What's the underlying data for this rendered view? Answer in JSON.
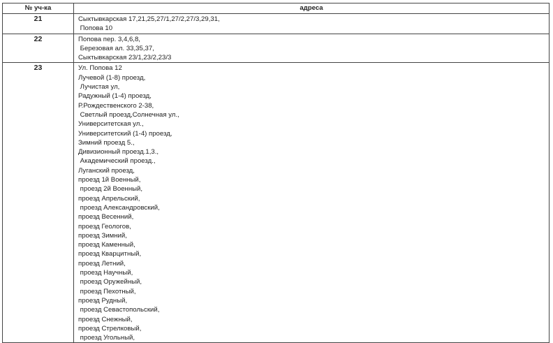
{
  "table": {
    "headers": [
      "№ уч-ка",
      "адреса"
    ],
    "rows": [
      {
        "number": "21",
        "addresses": [
          "Сыктывкарская 17,21,25,27/1,27/2,27/3,29,31,",
          " Попова 10"
        ]
      },
      {
        "number": "22",
        "addresses": [
          "Попова пер. 3,4,6,8,",
          " Березовая ал. 33,35,37,",
          "Сыктывкарская 23/1,23/2,23/3"
        ]
      },
      {
        "number": "23",
        "addresses": [
          "Ул. Попова 12",
          "Лучевой (1-8) проезд,",
          " Лучистая ул,",
          "Радужный (1-4) проезд,",
          "Р.Рождественского 2-38,",
          " Светлый проезд,Солнечная ул.,",
          "Университетская ул.,",
          "Университетский (1-4) проезд,",
          "Зимний проезд 5.,",
          "Дивизионный проезд.1,3.,",
          " Академический проезд.,",
          "Луганский проезд,",
          "проезд 1й Военный,",
          " проезд 2й Военный,",
          "проезд Апрельский,",
          " проезд Александровский,",
          "проезд Весенний,",
          "проезд Геологов,",
          "проезд Зимний,",
          "проезд Каменный,",
          "проезд Кварцитный,",
          "проезд Летний,",
          " проезд Научный,",
          " проезд Оружейный,",
          " проезд Пехотный,",
          "проезд Рудный,",
          " проезд Севастопольский,",
          "проезд Снежный,",
          "проезд Стрелковый,",
          " проезд Угольный,"
        ]
      }
    ]
  }
}
